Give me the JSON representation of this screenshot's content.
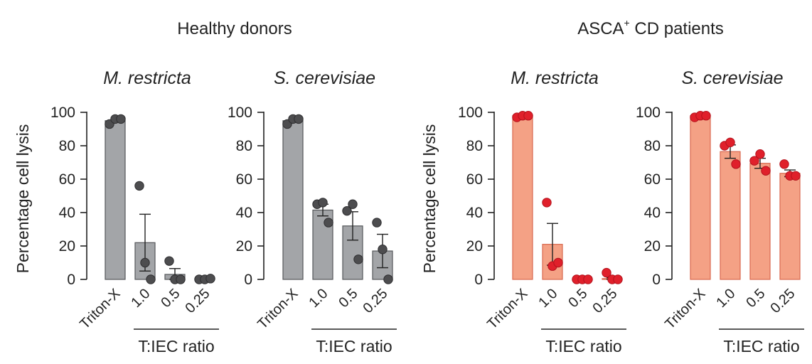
{
  "colors": {
    "healthy_bar": "#a3a5a8",
    "healthy_dot": "#4d4d4f",
    "cd_bar": "#f4a185",
    "cd_bar_edge": "#d9694f",
    "cd_dot": "#e0202b",
    "axis": "#222222"
  },
  "groups": [
    {
      "title": "Healthy donors"
    },
    {
      "title": "ASCA",
      "title_sup": "+",
      "title_rest": " CD patients"
    }
  ],
  "common": {
    "ylabel": "Percentage cell lysis",
    "xgroup_label": "T:IEC ratio",
    "categories": [
      "Triton-X",
      "1.0",
      "0.5",
      "0.25"
    ],
    "yticks": [
      "0",
      "20",
      "40",
      "60",
      "80",
      "100"
    ]
  },
  "chart_data": [
    {
      "type": "bar",
      "group": "Healthy donors",
      "title": "M. restricta",
      "ylabel": "Percentage cell lysis",
      "xlabel": "T:IEC ratio",
      "categories": [
        "Triton-X",
        "1.0",
        "0.5",
        "0.25"
      ],
      "values": [
        95,
        22,
        3,
        0.5
      ],
      "error": [
        0,
        17,
        3.5,
        0.5
      ],
      "points": [
        [
          93,
          96,
          96
        ],
        [
          56,
          10,
          0
        ],
        [
          11,
          0,
          0
        ],
        [
          0,
          0,
          0.5
        ]
      ],
      "ylim": [
        0,
        100
      ]
    },
    {
      "type": "bar",
      "group": "Healthy donors",
      "title": "S. cerevisiae",
      "ylabel": "",
      "xlabel": "T:IEC ratio",
      "categories": [
        "Triton-X",
        "1.0",
        "0.5",
        "0.25"
      ],
      "values": [
        95,
        41.5,
        32,
        17
      ],
      "error": [
        0,
        3.5,
        8.5,
        10
      ],
      "points": [
        [
          93,
          96,
          96
        ],
        [
          45,
          46,
          34
        ],
        [
          41,
          45,
          12
        ],
        [
          34,
          18,
          0
        ]
      ],
      "ylim": [
        0,
        100
      ]
    },
    {
      "type": "bar",
      "group": "ASCA+ CD patients",
      "title": "M. restricta",
      "ylabel": "Percentage cell lysis",
      "xlabel": "T:IEC ratio",
      "categories": [
        "Triton-X",
        "1.0",
        "0.5",
        "0.25"
      ],
      "values": [
        98,
        21,
        0,
        0.5
      ],
      "error": [
        0,
        12.5,
        0,
        0.5
      ],
      "points": [
        [
          97,
          98,
          98
        ],
        [
          46,
          8,
          10
        ],
        [
          0,
          0,
          0
        ],
        [
          4,
          0,
          0
        ]
      ],
      "ylim": [
        0,
        100
      ]
    },
    {
      "type": "bar",
      "group": "ASCA+ CD patients",
      "title": "S. cerevisiae",
      "ylabel": "",
      "xlabel": "T:IEC ratio",
      "categories": [
        "Triton-X",
        "1.0",
        "0.5",
        "0.25"
      ],
      "values": [
        98,
        76.5,
        69.5,
        63.5
      ],
      "error": [
        0,
        4,
        3,
        2
      ],
      "points": [
        [
          97,
          98,
          98
        ],
        [
          80,
          82,
          69
        ],
        [
          71,
          75,
          65
        ],
        [
          69,
          62,
          62
        ]
      ],
      "ylim": [
        0,
        100
      ]
    }
  ]
}
